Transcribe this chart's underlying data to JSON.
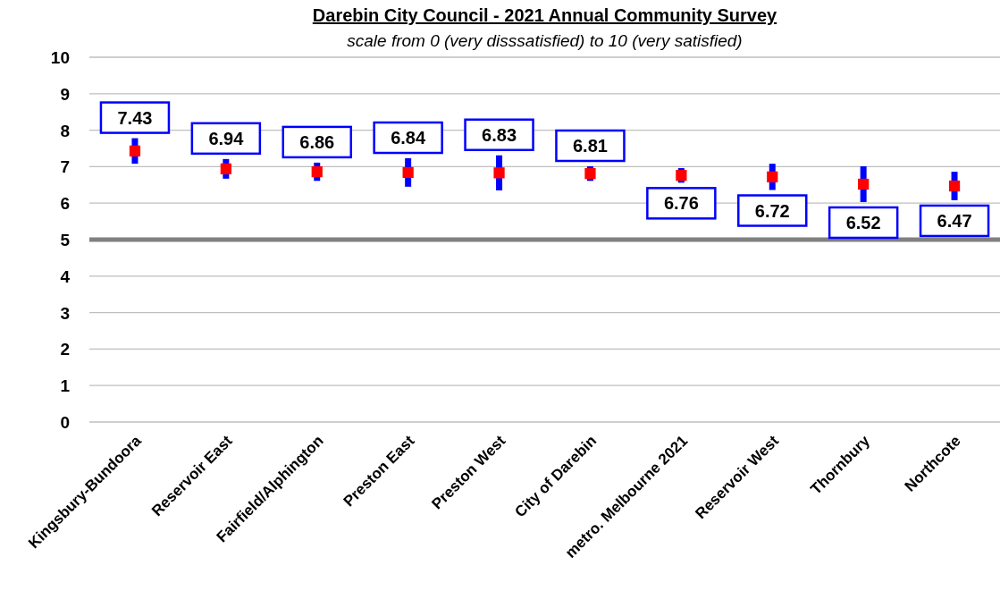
{
  "chart_data": {
    "type": "scatter",
    "title": "Darebin City Council - 2021 Annual Community Survey",
    "subtitle": "scale from 0 (very disssatisfied) to 10 (very satisfied)",
    "categories": [
      "Kingsbury-Bundoora",
      "Reservoir East",
      "Fairfield/Alphington",
      "Preston East",
      "Preston West",
      "City of Darebin",
      "metro. Melbourne 2021",
      "Reservoir West",
      "Thornbury",
      "Northcote"
    ],
    "series": [
      {
        "color": "#ff0000",
        "values": [
          7.43,
          6.94,
          6.86,
          6.84,
          6.83,
          6.81,
          6.76,
          6.72,
          6.52,
          6.47
        ],
        "errors": [
          0.35,
          0.27,
          0.25,
          0.39,
          0.48,
          0.2,
          0.2,
          0.36,
          0.49,
          0.39
        ]
      }
    ],
    "ylim": [
      0,
      10
    ],
    "yticks": [
      0,
      1,
      2,
      3,
      4,
      5,
      6,
      7,
      8,
      9,
      10
    ],
    "grid": "y",
    "marker": "square",
    "data_labels": true,
    "ref_lines": [
      {
        "axis": "y",
        "value": 5,
        "color": "#808080"
      }
    ]
  }
}
